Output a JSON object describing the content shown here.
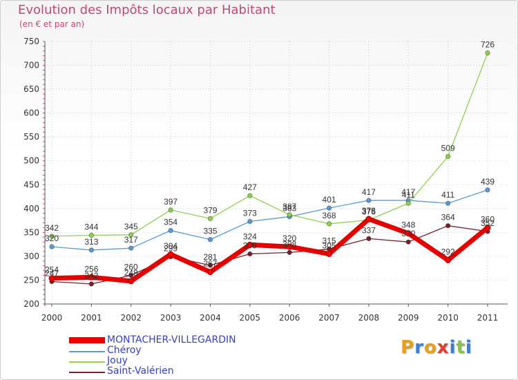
{
  "chart_data": {
    "type": "line",
    "title": "Evolution des Impôts locaux par Habitant",
    "subtitle": "(en € et par an)",
    "categories": [
      "2000",
      "2001",
      "2002",
      "2003",
      "2004",
      "2005",
      "2006",
      "2007",
      "2008",
      "2009",
      "2010",
      "2011"
    ],
    "ylim": [
      200,
      750
    ],
    "yticks": [
      200,
      250,
      300,
      350,
      400,
      450,
      500,
      550,
      600,
      650,
      700,
      750
    ],
    "series": [
      {
        "name": "Saint-Valérien",
        "color": "#7a1f2b",
        "values": [
          247,
          242,
          260,
          299,
          281,
          305,
          308,
          315,
          337,
          330,
          364,
          352
        ],
        "labels": [
          "247",
          "242",
          "260",
          "299",
          "281",
          "305",
          "308",
          "315",
          "337",
          "330",
          "364",
          "352"
        ]
      },
      {
        "name": "Chéroy",
        "color": "#5b9bd5",
        "values": [
          320,
          313,
          317,
          354,
          335,
          373,
          383,
          401,
          417,
          417,
          411,
          439
        ],
        "labels": [
          "320",
          "313",
          "317",
          "354",
          "335",
          "373",
          "383",
          "401",
          "417",
          "417",
          "411",
          "439"
        ]
      },
      {
        "name": "Jouy",
        "color": "#8fd14f",
        "values": [
          342,
          344,
          345,
          397,
          379,
          427,
          387,
          368,
          376,
          411,
          509,
          726
        ],
        "labels": [
          "342",
          "344",
          "345",
          "397",
          "379",
          "427",
          "387",
          "368",
          "376",
          "411",
          "509",
          "726"
        ]
      },
      {
        "name": "MONTACHER-VILLEGARDIN",
        "color": "#e60000",
        "values": [
          254,
          256,
          248,
          304,
          267,
          324,
          320,
          305,
          378,
          348,
          292,
          360
        ],
        "labels": [
          "254",
          "256",
          "248",
          "304",
          "267",
          "324",
          "320",
          "305",
          "378",
          "348",
          "292",
          "360"
        ]
      }
    ]
  },
  "legend": [
    {
      "name": "MONTACHER-VILLEGARDIN",
      "color": "#e60000"
    },
    {
      "name": "Chéroy",
      "color": "#5b9bd5"
    },
    {
      "name": "Jouy",
      "color": "#8fd14f"
    },
    {
      "name": "Saint-Valérien",
      "color": "#7a1f2b"
    }
  ],
  "logo": {
    "text": "Proxiti",
    "colors": [
      "#e8a21a",
      "#3a7fd0",
      "#e8a21a",
      "#e23c2c",
      "#3a7fd0",
      "#8bc53f",
      "#3a7fd0"
    ]
  }
}
